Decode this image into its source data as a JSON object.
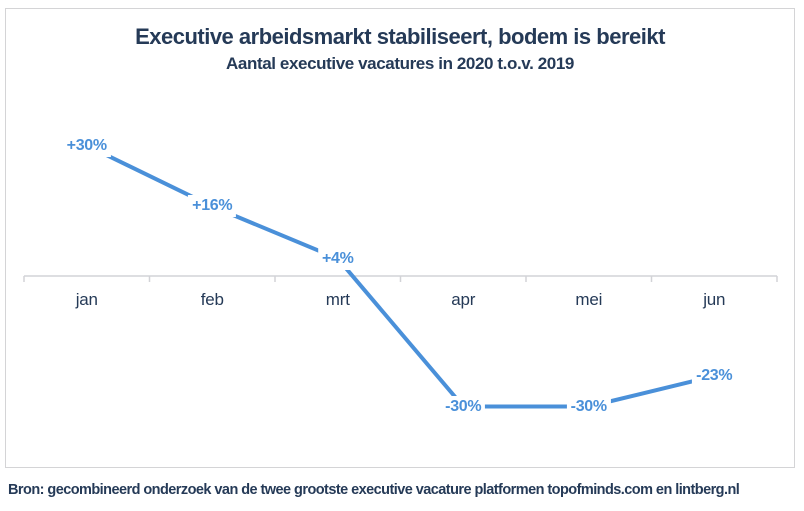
{
  "chart": {
    "title": "Executive arbeidsmarkt stabiliseert, bodem is bereikt",
    "subtitle": "Aantal executive vacatures in 2020 t.o.v. 2019",
    "source": "Bron: gecombineerd onderzoek van de twee grootste executive vacature platformen topofminds.com en lintberg.nl"
  },
  "chart_data": {
    "type": "line",
    "title": "Executive arbeidsmarkt stabiliseert, bodem is bereikt",
    "subtitle": "Aantal executive vacatures in 2020 t.o.v. 2019",
    "categories": [
      "jan",
      "feb",
      "mrt",
      "apr",
      "mei",
      "jun"
    ],
    "values": [
      30,
      16,
      4,
      -30,
      -30,
      -23
    ],
    "point_labels": [
      "+30%",
      "+16%",
      "+4%",
      "-30%",
      "-30%",
      "-23%"
    ],
    "unit": "%",
    "xlabel": "",
    "ylabel": "",
    "grid": false,
    "legend": "none",
    "baseline": 0,
    "axis_note": "single x-axis drawn at 0% with ticks between month bins",
    "source": "Bron: gecombineerd onderzoek van de twee grootste executive vacature platformen topofminds.com en lintberg.nl"
  },
  "colors": {
    "line": "#4a90d9",
    "text_navy": "#253a57",
    "axis_gray": "#d2d3d7",
    "border_gray": "#d4d4d6",
    "background": "#ffffff"
  }
}
